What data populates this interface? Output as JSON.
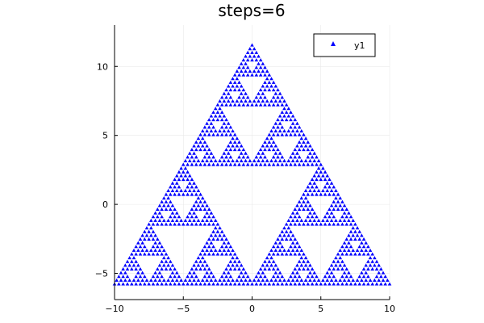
{
  "chart_data": {
    "type": "scatter",
    "title": "steps=6",
    "xlabel": "",
    "ylabel": "",
    "xlim": [
      -10,
      10
    ],
    "ylim": [
      -6.9,
      13
    ],
    "xticks": [
      -10,
      -5,
      0,
      5,
      10
    ],
    "yticks": [
      -5,
      0,
      5,
      10
    ],
    "grid": true,
    "legend": {
      "position": "top-right",
      "entries": [
        "y1"
      ]
    },
    "series": [
      {
        "name": "y1",
        "marker": "triangle",
        "color": "#0000ff",
        "fractal": {
          "kind": "sierpinski",
          "steps": 6,
          "vertices": [
            [
              -10,
              -5.77
            ],
            [
              10,
              -5.77
            ],
            [
              0,
              11.55
            ]
          ]
        }
      }
    ]
  }
}
